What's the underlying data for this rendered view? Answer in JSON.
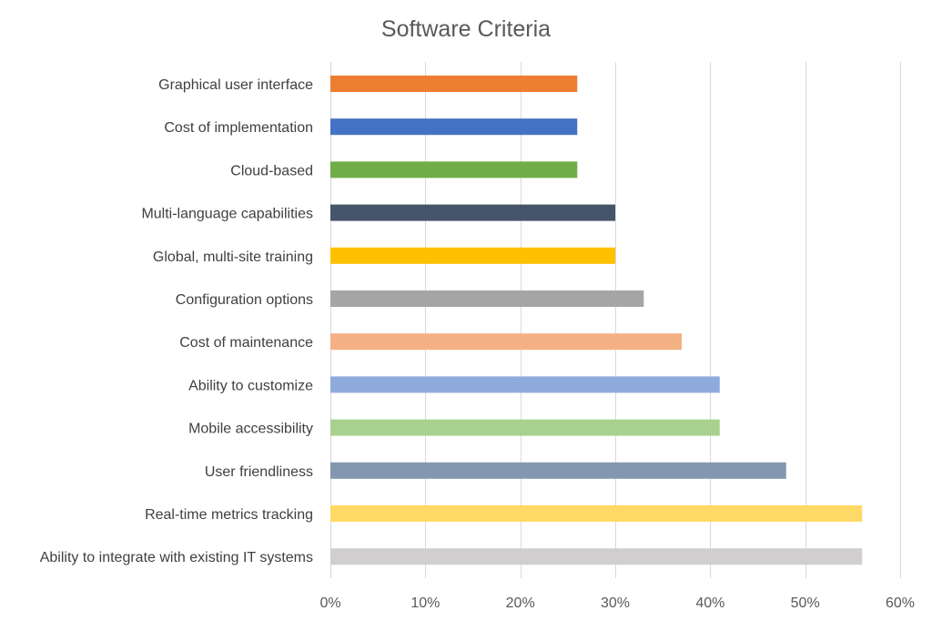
{
  "chart_data": {
    "type": "bar",
    "orientation": "horizontal",
    "title": "Software Criteria",
    "xlabel": "",
    "ylabel": "",
    "xlim": [
      0,
      60
    ],
    "ticks": [
      0,
      10,
      20,
      30,
      40,
      50,
      60
    ],
    "tick_labels": [
      "0%",
      "10%",
      "20%",
      "30%",
      "40%",
      "50%",
      "60%"
    ],
    "grid": true,
    "legend": false,
    "categories": [
      "Graphical user interface",
      "Cost of implementation",
      "Cloud-based",
      "Multi-language capabilities",
      "Global, multi-site training",
      "Configuration options",
      "Cost of maintenance",
      "Ability to customize",
      "Mobile accessibility",
      "User friendliness",
      "Real-time metrics tracking",
      "Ability to integrate with existing IT systems"
    ],
    "values": [
      26,
      26,
      26,
      30,
      30,
      33,
      37,
      41,
      41,
      48,
      56,
      56
    ],
    "colors": [
      "#ED7D31",
      "#4472C4",
      "#70AD47",
      "#44546A",
      "#FFC000",
      "#A5A5A5",
      "#F4B183",
      "#8FAADC",
      "#A9D18E",
      "#8497B0",
      "#FFD966",
      "#D0CECE"
    ]
  }
}
